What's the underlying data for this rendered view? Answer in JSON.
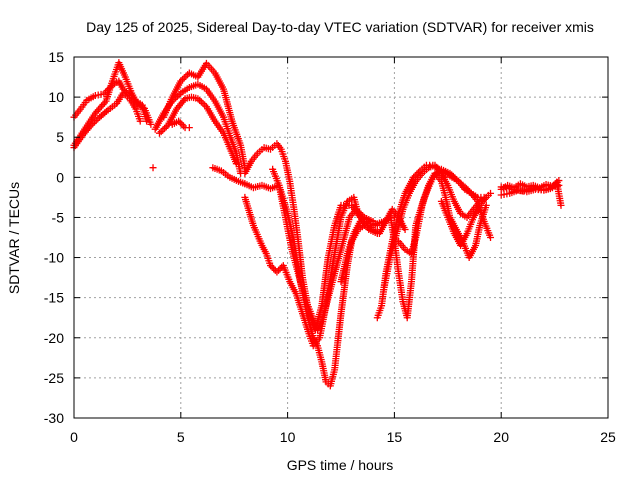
{
  "chart_data": {
    "type": "scatter",
    "title": "Day 125 of 2025, Sidereal Day-to-day VTEC variation (SDTVAR) for receiver xmis",
    "xlabel": "GPS time / hours",
    "ylabel": "SDTVAR / TECUs",
    "xlim": [
      0,
      25
    ],
    "ylim": [
      -30,
      15
    ],
    "xticks": [
      0,
      5,
      10,
      15,
      20,
      25
    ],
    "yticks": [
      15,
      10,
      5,
      0,
      -5,
      -10,
      -15,
      -20,
      -25,
      -30
    ],
    "grid": true,
    "marker": "plus",
    "colors": {
      "points": "#ff0000",
      "grid": "#a0a0a0",
      "axes": "#000000"
    },
    "series": [
      {
        "x": [
          0.0,
          0.3,
          0.6,
          1.0,
          1.4,
          1.8,
          2.1,
          2.3,
          2.6,
          2.9,
          3.2,
          3.4
        ],
        "y": [
          7.5,
          8.5,
          9.6,
          10.2,
          10.4,
          11.5,
          12.0,
          11.0,
          10.2,
          9.5,
          9.0,
          7.0
        ]
      },
      {
        "x": [
          0.0,
          0.5,
          1.0,
          1.5,
          1.8,
          2.1,
          2.4,
          2.7,
          3.0,
          3.3,
          3.6
        ],
        "y": [
          4.0,
          6.0,
          8.0,
          9.5,
          12.0,
          14.3,
          12.5,
          10.5,
          9.0,
          8.6,
          6.6
        ]
      },
      {
        "x": [
          0.0,
          0.4,
          0.8,
          1.2,
          1.6,
          2.0,
          2.3,
          2.6,
          2.9,
          3.1
        ],
        "y": [
          3.7,
          5.2,
          6.5,
          7.5,
          8.4,
          9.2,
          10.5,
          9.8,
          8.5,
          7.0
        ]
      },
      {
        "x": [
          3.7
        ],
        "y": [
          1.2
        ]
      },
      {
        "x": [
          3.8,
          4.2,
          4.6,
          5.0,
          5.4,
          5.8,
          6.2,
          6.6,
          7.0,
          7.3,
          7.6,
          7.8
        ],
        "y": [
          6.0,
          8.0,
          9.5,
          10.5,
          11.2,
          11.6,
          11.0,
          9.5,
          7.5,
          5.2,
          3.0,
          0.5
        ]
      },
      {
        "x": [
          4.2,
          4.6,
          5.0,
          5.4,
          5.8,
          6.2,
          6.6,
          7.0,
          7.4,
          7.8,
          8.0
        ],
        "y": [
          7.5,
          10.0,
          12.0,
          13.0,
          12.5,
          14.2,
          13.0,
          11.0,
          7.0,
          4.0,
          1.2
        ]
      },
      {
        "x": [
          4.0,
          4.4,
          4.8,
          5.2,
          5.5,
          5.8,
          6.2,
          6.6,
          7.0,
          7.4,
          7.6
        ],
        "y": [
          5.5,
          6.5,
          8.5,
          9.8,
          10.0,
          9.8,
          8.8,
          7.0,
          5.5,
          3.0,
          1.7
        ]
      },
      {
        "x": [
          4.6,
          4.9,
          5.2,
          5.4
        ],
        "y": [
          6.6,
          7.0,
          6.2,
          6.2
        ]
      },
      {
        "x": [
          6.5,
          6.9,
          7.3,
          7.7,
          8.0
        ],
        "y": [
          1.2,
          0.8,
          0.0,
          -0.5,
          -0.8
        ]
      },
      {
        "x": [
          8.0,
          8.4,
          8.8,
          9.2,
          9.6,
          10.0,
          10.3,
          10.6,
          10.9,
          11.2,
          11.4,
          11.6,
          11.8,
          12.0,
          12.2,
          12.5,
          12.8,
          13.0,
          13.3,
          13.6,
          13.9,
          14.2,
          14.5,
          14.8,
          15.0
        ],
        "y": [
          -0.8,
          -1.3,
          -1.0,
          -1.4,
          -1.0,
          -4.5,
          -8.0,
          -13.0,
          -17.0,
          -20.0,
          -21.0,
          -23.0,
          -25.5,
          -26.0,
          -24.0,
          -17.0,
          -11.0,
          -8.0,
          -6.5,
          -6.0,
          -6.0,
          -5.8,
          -5.5,
          -5.0,
          -5.0
        ]
      },
      {
        "x": [
          8.0,
          8.4,
          8.8,
          9.0,
          9.2,
          9.5,
          9.8,
          10.1,
          10.4,
          10.7,
          11.0,
          11.2,
          11.5,
          11.8,
          12.1,
          12.5,
          12.8,
          13.1,
          13.3,
          13.6
        ],
        "y": [
          -2.5,
          -6.0,
          -8.5,
          -9.5,
          -11.0,
          -11.8,
          -11.0,
          -13.0,
          -14.5,
          -17.0,
          -19.5,
          -21.0,
          -20.0,
          -16.0,
          -11.0,
          -5.0,
          -3.0,
          -2.5,
          -4.5,
          -5.5
        ]
      },
      {
        "x": [
          8.0,
          8.3,
          8.6,
          8.9,
          9.2,
          9.5,
          9.7,
          9.9,
          10.1,
          10.3,
          10.5,
          10.7,
          11.0,
          11.3,
          11.6,
          11.9,
          12.2,
          12.5,
          13.0,
          13.4,
          13.8,
          14.2
        ],
        "y": [
          0.5,
          2.0,
          3.0,
          3.7,
          3.5,
          4.2,
          3.5,
          2.0,
          -0.5,
          -4.0,
          -8.0,
          -12.5,
          -17.0,
          -19.0,
          -16.0,
          -10.0,
          -6.0,
          -3.5,
          -3.5,
          -5.0,
          -6.5,
          -7.0
        ]
      },
      {
        "x": [
          9.3,
          9.6,
          9.9,
          10.2,
          10.5,
          10.8,
          11.1,
          11.4,
          11.6,
          11.9,
          12.2,
          12.6,
          12.9,
          13.2,
          13.6,
          14.0,
          14.2
        ],
        "y": [
          1.0,
          -1.0,
          -5.0,
          -9.0,
          -12.0,
          -15.0,
          -17.0,
          -19.0,
          -18.0,
          -15.0,
          -12.0,
          -8.0,
          -5.0,
          -4.0,
          -5.0,
          -5.5,
          -6.0
        ]
      },
      {
        "x": [
          12.5,
          12.8,
          13.1,
          13.4,
          13.7,
          14.0,
          14.3,
          14.6,
          14.9,
          15.2,
          15.5
        ],
        "y": [
          -13.0,
          -9.5,
          -7.0,
          -5.5,
          -5.5,
          -6.5,
          -7.0,
          -5.5,
          -4.0,
          -5.0,
          -6.5
        ]
      },
      {
        "x": [
          14.2,
          14.4,
          14.6,
          14.9,
          15.2,
          15.5,
          15.7,
          15.9,
          16.2,
          16.5,
          16.8,
          17.1,
          17.4,
          17.7,
          18.0,
          18.3,
          18.6,
          18.9,
          19.2,
          19.5
        ],
        "y": [
          -17.5,
          -16.0,
          -12.0,
          -8.0,
          -4.5,
          -2.0,
          -1.0,
          0.0,
          0.8,
          1.5,
          1.5,
          1.0,
          0.5,
          0.0,
          -0.5,
          -1.2,
          -2.0,
          -3.0,
          -5.5,
          -7.5
        ]
      },
      {
        "x": [
          14.5,
          14.8,
          15.1,
          15.4,
          15.7,
          16.0,
          16.3,
          16.6,
          16.9,
          17.2,
          17.5,
          17.8,
          18.1,
          18.4,
          18.7,
          19.0,
          19.3
        ],
        "y": [
          -14.0,
          -10.0,
          -7.0,
          -4.0,
          -2.0,
          -0.5,
          0.5,
          1.2,
          1.5,
          0.5,
          -1.0,
          -3.0,
          -4.5,
          -5.0,
          -4.0,
          -3.0,
          -2.5
        ]
      },
      {
        "x": [
          14.8,
          15.0,
          15.2,
          15.4,
          15.6,
          15.8,
          16.0,
          16.4,
          16.8,
          17.2,
          17.6,
          18.0,
          18.3,
          18.6,
          18.9,
          19.2
        ],
        "y": [
          -4.5,
          -8.0,
          -12.0,
          -15.5,
          -17.5,
          -13.0,
          -6.0,
          -2.5,
          0.0,
          1.0,
          0.5,
          -0.5,
          -1.5,
          -2.0,
          -2.5,
          -2.5
        ]
      },
      {
        "x": [
          15.2,
          15.5,
          15.8,
          16.0,
          16.3,
          16.6,
          16.9,
          17.2,
          17.4,
          17.6,
          17.9,
          18.2,
          18.5,
          18.8,
          19.0,
          19.3
        ],
        "y": [
          -8.0,
          -9.0,
          -9.5,
          -7.5,
          -3.5,
          -1.0,
          0.5,
          -0.5,
          -2.5,
          -5.0,
          -6.5,
          -8.0,
          -10.0,
          -8.5,
          -6.0,
          -3.5
        ]
      },
      {
        "x": [
          17.2,
          17.5,
          17.8,
          18.1,
          18.4,
          18.7,
          19.0,
          19.3,
          19.5
        ],
        "y": [
          -3.0,
          -5.0,
          -7.0,
          -8.5,
          -7.0,
          -5.0,
          -3.5,
          -2.5,
          -2.0
        ]
      },
      {
        "x": [
          20.0,
          20.3,
          20.6,
          20.9,
          21.2,
          21.5,
          21.8,
          22.1,
          22.4,
          22.7
        ],
        "y": [
          -1.5,
          -1.0,
          -1.3,
          -0.8,
          -1.2,
          -1.0,
          -1.3,
          -0.9,
          -1.1,
          -1.0
        ]
      },
      {
        "x": [
          20.0,
          20.4,
          20.8,
          21.2,
          21.6,
          22.0,
          22.3,
          22.6,
          22.8
        ],
        "y": [
          -2.2,
          -2.0,
          -1.6,
          -1.8,
          -1.5,
          -1.6,
          -1.4,
          -0.6,
          -3.5
        ]
      },
      {
        "x": [
          20.0,
          20.5,
          21.0,
          21.5,
          22.0,
          22.4,
          22.7
        ],
        "y": [
          -1.2,
          -1.5,
          -1.7,
          -1.3,
          -1.6,
          -1.3,
          -0.4
        ]
      }
    ]
  }
}
